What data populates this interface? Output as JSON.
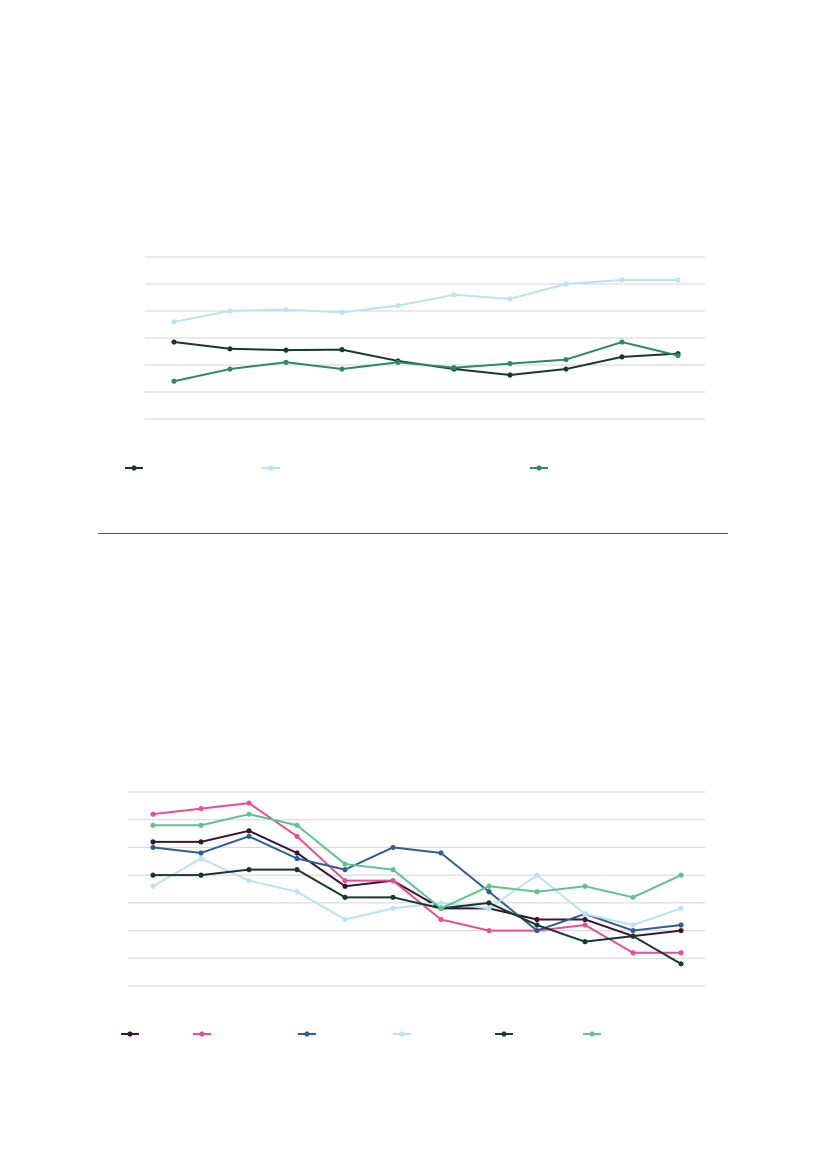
{
  "divider": {
    "color": "#8a3a6a"
  },
  "chart_data": [
    {
      "type": "line",
      "gridlines": 7,
      "legend_position": "bottom",
      "x": [
        1,
        2,
        3,
        4,
        5,
        6,
        7,
        8,
        9,
        10
      ],
      "series": [
        {
          "color": "#16382e",
          "values": [
            2.85,
            2.6,
            2.55,
            2.57,
            2.15,
            1.85,
            1.63,
            1.85,
            2.3,
            2.42
          ]
        },
        {
          "color": "#b8e3f2",
          "values": [
            3.6,
            4.0,
            4.05,
            3.95,
            4.2,
            4.6,
            4.45,
            5.0,
            5.15,
            5.15
          ]
        },
        {
          "color": "#2a8a62",
          "values": [
            1.4,
            1.85,
            2.1,
            1.85,
            2.1,
            1.9,
            2.05,
            2.2,
            2.85,
            2.35
          ]
        }
      ],
      "ylim": [
        0,
        6
      ]
    },
    {
      "type": "line",
      "gridlines": 8,
      "legend_position": "bottom",
      "x": [
        1,
        2,
        3,
        4,
        5,
        6,
        7,
        8,
        9,
        10,
        11,
        12
      ],
      "series": [
        {
          "color": "#3a1530",
          "values": [
            5.2,
            5.2,
            5.6,
            4.8,
            3.6,
            3.8,
            2.8,
            2.8,
            2.4,
            2.4,
            1.8,
            2.0
          ]
        },
        {
          "color": "#ea4d8f",
          "values": [
            6.2,
            6.4,
            6.6,
            5.4,
            3.8,
            3.8,
            2.4,
            2.0,
            2.0,
            2.2,
            1.2,
            1.2
          ]
        },
        {
          "color": "#2d5f96",
          "values": [
            5.0,
            4.8,
            5.4,
            4.6,
            4.2,
            5.0,
            4.8,
            3.4,
            2.0,
            2.6,
            2.0,
            2.2
          ]
        },
        {
          "color": "#b8e3f2",
          "values": [
            3.6,
            4.6,
            3.8,
            3.4,
            2.4,
            2.8,
            3.0,
            2.8,
            4.0,
            2.6,
            2.2,
            2.8
          ]
        },
        {
          "color": "#16382e",
          "values": [
            4.0,
            4.0,
            4.2,
            4.2,
            3.2,
            3.2,
            2.8,
            3.0,
            2.2,
            1.6,
            1.8,
            0.8
          ]
        },
        {
          "color": "#5ec48e",
          "values": [
            5.8,
            5.8,
            6.2,
            5.8,
            4.4,
            4.2,
            2.8,
            3.6,
            3.4,
            3.6,
            3.2,
            4.0
          ]
        }
      ],
      "ylim": [
        0,
        7
      ]
    }
  ]
}
